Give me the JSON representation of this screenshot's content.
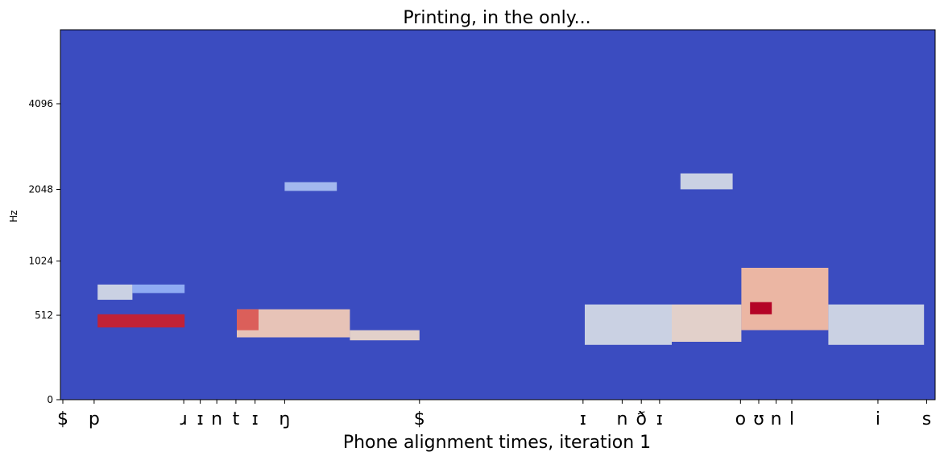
{
  "chart_data": {
    "type": "heatmap",
    "title": "Printing, in the only...",
    "xlabel": "Phone alignment times, iteration 1",
    "ylabel": "Hz",
    "y_scale": "mel",
    "y_ticks": [
      0,
      512,
      1024,
      2048,
      4096
    ],
    "colormap": "coolwarm",
    "background_color": "#3b4cc0",
    "phones": [
      {
        "label": "$",
        "t": 0.0
      },
      {
        "label": "p",
        "t": 0.036
      },
      {
        "label": "ɹ",
        "t": 0.139
      },
      {
        "label": "ɪ",
        "t": 0.158
      },
      {
        "label": "n",
        "t": 0.177
      },
      {
        "label": "t",
        "t": 0.199
      },
      {
        "label": "ɪ",
        "t": 0.221
      },
      {
        "label": "ŋ",
        "t": 0.255
      },
      {
        "label": "$",
        "t": 0.41
      },
      {
        "label": "ɪ",
        "t": 0.598
      },
      {
        "label": "n",
        "t": 0.643
      },
      {
        "label": "ð",
        "t": 0.665
      },
      {
        "label": "ɪ",
        "t": 0.686
      },
      {
        "label": "o",
        "t": 0.779
      },
      {
        "label": "ʊ",
        "t": 0.8
      },
      {
        "label": "n",
        "t": 0.82
      },
      {
        "label": "l",
        "t": 0.838
      },
      {
        "label": "i",
        "t": 0.937
      },
      {
        "label": "s",
        "t": 0.993
      }
    ],
    "energy_regions": [
      {
        "t0": 0.04,
        "t1": 0.14,
        "y0": 420,
        "y1": 520,
        "level": 0.95
      },
      {
        "t0": 0.04,
        "t1": 0.08,
        "y0": 640,
        "y1": 780,
        "level": 0.45
      },
      {
        "t0": 0.08,
        "t1": 0.14,
        "y0": 700,
        "y1": 780,
        "level": 0.3
      },
      {
        "t0": 0.2,
        "t1": 0.33,
        "y0": 350,
        "y1": 560,
        "level": 0.6
      },
      {
        "t0": 0.2,
        "t1": 0.225,
        "y0": 400,
        "y1": 560,
        "level": 0.85
      },
      {
        "t0": 0.33,
        "t1": 0.41,
        "y0": 330,
        "y1": 400,
        "level": 0.55
      },
      {
        "t0": 0.255,
        "t1": 0.315,
        "y0": 2020,
        "y1": 2180,
        "level": 0.35
      },
      {
        "t0": 0.6,
        "t1": 0.7,
        "y0": 300,
        "y1": 600,
        "level": 0.45
      },
      {
        "t0": 0.7,
        "t1": 0.78,
        "y0": 320,
        "y1": 600,
        "level": 0.55
      },
      {
        "t0": 0.78,
        "t1": 0.88,
        "y0": 400,
        "y1": 950,
        "level": 0.65
      },
      {
        "t0": 0.79,
        "t1": 0.815,
        "y0": 520,
        "y1": 620,
        "level": 1.0
      },
      {
        "t0": 0.88,
        "t1": 0.99,
        "y0": 300,
        "y1": 600,
        "level": 0.45
      },
      {
        "t0": 0.71,
        "t1": 0.77,
        "y0": 2050,
        "y1": 2350,
        "level": 0.45
      }
    ]
  }
}
